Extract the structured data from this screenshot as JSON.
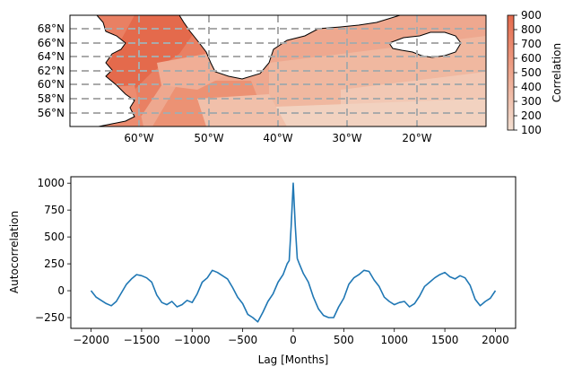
{
  "chart_data": [
    {
      "type": "heatmap",
      "colorbar": {
        "label": "Correlation",
        "range": [
          100,
          900
        ],
        "ticks": [
          100,
          200,
          300,
          400,
          500,
          600,
          700,
          800,
          900
        ],
        "color_low": "#f2d6c8",
        "color_high": "#e46a4c"
      },
      "xlim": [
        -70,
        -10
      ],
      "ylim": [
        54,
        70
      ],
      "x_ticks": [
        {
          "value": -60,
          "label": "60°W"
        },
        {
          "value": -50,
          "label": "50°W"
        },
        {
          "value": -40,
          "label": "40°W"
        },
        {
          "value": -30,
          "label": "30°W"
        },
        {
          "value": -20,
          "label": "20°W"
        }
      ],
      "y_ticks": [
        {
          "value": 56,
          "label": "56°N"
        },
        {
          "value": 58,
          "label": "58°N"
        },
        {
          "value": 60,
          "label": "60°N"
        },
        {
          "value": 62,
          "label": "62°N"
        },
        {
          "value": 64,
          "label": "64°N"
        },
        {
          "value": 66,
          "label": "66°N"
        },
        {
          "value": 68,
          "label": "68°N"
        }
      ],
      "grid": true,
      "grid_color": "#aaaaaa",
      "land_color": "#ffffff",
      "coastline_color": "#000000"
    },
    {
      "type": "line",
      "xlabel": "Lag [Months]",
      "ylabel": "Autocorrelation",
      "xlim": [
        -2200,
        2200
      ],
      "ylim": [
        -350,
        1060
      ],
      "x_ticks": [
        -2000,
        -1500,
        -1000,
        -500,
        0,
        500,
        1000,
        1500,
        2000
      ],
      "x_tick_labels": [
        "−2000",
        "−1500",
        "−1000",
        "−500",
        "0",
        "500",
        "1000",
        "1500",
        "2000"
      ],
      "y_ticks": [
        -250,
        0,
        250,
        500,
        750,
        1000
      ],
      "y_tick_labels": [
        "−250",
        "0",
        "250",
        "500",
        "750",
        "1000"
      ],
      "line_color": "#1f77b4",
      "series": [
        {
          "x": [
            -2000,
            -1950,
            -1900,
            -1850,
            -1800,
            -1750,
            -1700,
            -1650,
            -1600,
            -1550,
            -1500,
            -1450,
            -1400,
            -1350,
            -1300,
            -1250,
            -1200,
            -1150,
            -1100,
            -1050,
            -1000,
            -950,
            -900,
            -850,
            -800,
            -750,
            -700,
            -650,
            -600,
            -550,
            -500,
            -450,
            -400,
            -350,
            -300,
            -250,
            -200,
            -150,
            -100,
            -60,
            -40,
            -20,
            0,
            20,
            40,
            60,
            100,
            150,
            200,
            250,
            300,
            350,
            400,
            450,
            500,
            550,
            600,
            650,
            700,
            750,
            800,
            850,
            900,
            950,
            1000,
            1050,
            1100,
            1150,
            1200,
            1250,
            1300,
            1350,
            1400,
            1450,
            1500,
            1550,
            1600,
            1650,
            1700,
            1750,
            1800,
            1850,
            1900,
            1950,
            2000
          ],
          "y": [
            0,
            -60,
            -90,
            -120,
            -140,
            -100,
            -20,
            60,
            110,
            150,
            140,
            120,
            80,
            -40,
            -110,
            -130,
            -100,
            -150,
            -130,
            -90,
            -110,
            -30,
            80,
            120,
            190,
            170,
            140,
            110,
            30,
            -60,
            -120,
            -220,
            -250,
            -290,
            -200,
            -100,
            -30,
            80,
            150,
            250,
            280,
            600,
            1000,
            600,
            300,
            250,
            160,
            80,
            -60,
            -170,
            -230,
            -250,
            -250,
            -150,
            -70,
            60,
            120,
            150,
            190,
            180,
            100,
            40,
            -60,
            -100,
            -130,
            -110,
            -100,
            -150,
            -120,
            -50,
            40,
            80,
            120,
            150,
            170,
            130,
            110,
            140,
            120,
            50,
            -80,
            -140,
            -100,
            -70,
            0
          ]
        }
      ]
    }
  ]
}
